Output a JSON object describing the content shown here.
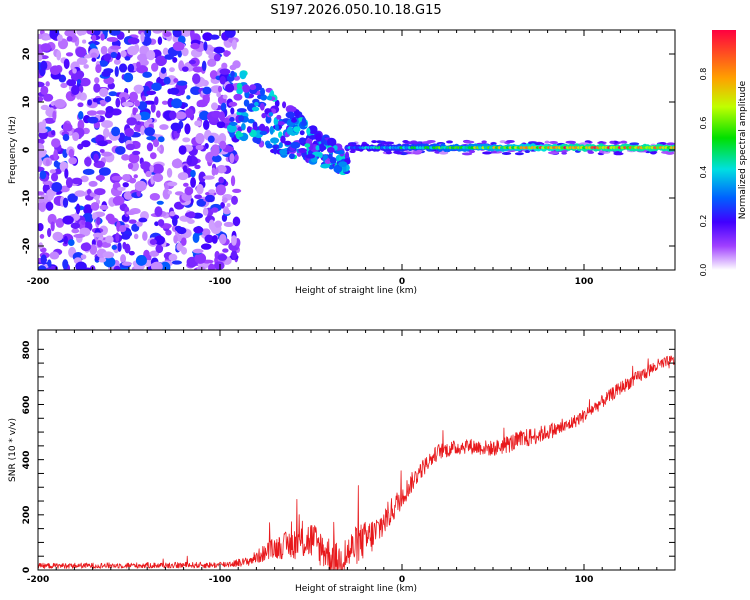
{
  "chart_data": [
    {
      "type": "heatmap",
      "title": "S197.2026.050.10.18.G15",
      "xlabel": "Height of straight line (km)",
      "ylabel": "Frequency (Hz)",
      "xlim": [
        -200,
        150
      ],
      "ylim": [
        -25,
        25
      ],
      "xticks": [
        "-200",
        "-100",
        "0",
        "100"
      ],
      "yticks": [
        "-20",
        "-10",
        "0",
        "10",
        "20"
      ],
      "description_series": [
        {
          "name": "noise region",
          "x_range": [
            -200,
            -90
          ],
          "freq_range": [
            -25,
            25
          ],
          "amplitude": [
            0.05,
            0.3
          ]
        },
        {
          "name": "converging scatter",
          "x_range": [
            -95,
            -30
          ],
          "freq_range": [
            -15,
            16
          ],
          "amplitude": [
            0.1,
            0.45
          ]
        },
        {
          "name": "signal line",
          "x_range": [
            -30,
            150
          ],
          "freq_center": 0.5,
          "amplitude": [
            0.4,
            1.0
          ]
        }
      ],
      "colorbar": {
        "label": "Normalized spectral amplitude",
        "range": [
          0,
          1
        ],
        "ticks": [
          "0.0",
          "0.2",
          "0.4",
          "0.6",
          "0.8"
        ]
      }
    },
    {
      "type": "line",
      "title": "",
      "xlabel": "Height of straight line (km)",
      "ylabel": "SNR (10 * v/v)",
      "xlim": [
        -200,
        150
      ],
      "ylim": [
        0,
        870
      ],
      "xticks": [
        "-200",
        "-100",
        "0",
        "100"
      ],
      "yticks": [
        "0",
        "200",
        "400",
        "600",
        "800"
      ],
      "series": [
        {
          "name": "SNR",
          "color": "#e8191c",
          "x": [
            -200,
            -100,
            -85,
            -70,
            -50,
            -35,
            -25,
            -15,
            -5,
            10,
            20,
            35,
            50,
            65,
            80,
            90,
            100,
            110,
            120,
            130,
            140,
            150
          ],
          "mean": [
            15,
            18,
            30,
            80,
            110,
            30,
            90,
            130,
            220,
            360,
            430,
            450,
            440,
            470,
            500,
            520,
            560,
            610,
            660,
            700,
            740,
            760
          ],
          "noise": [
            12,
            14,
            20,
            50,
            90,
            80,
            90,
            80,
            60,
            40,
            35,
            35,
            35,
            45,
            35,
            30,
            30,
            30,
            30,
            30,
            30,
            30
          ]
        }
      ]
    }
  ]
}
